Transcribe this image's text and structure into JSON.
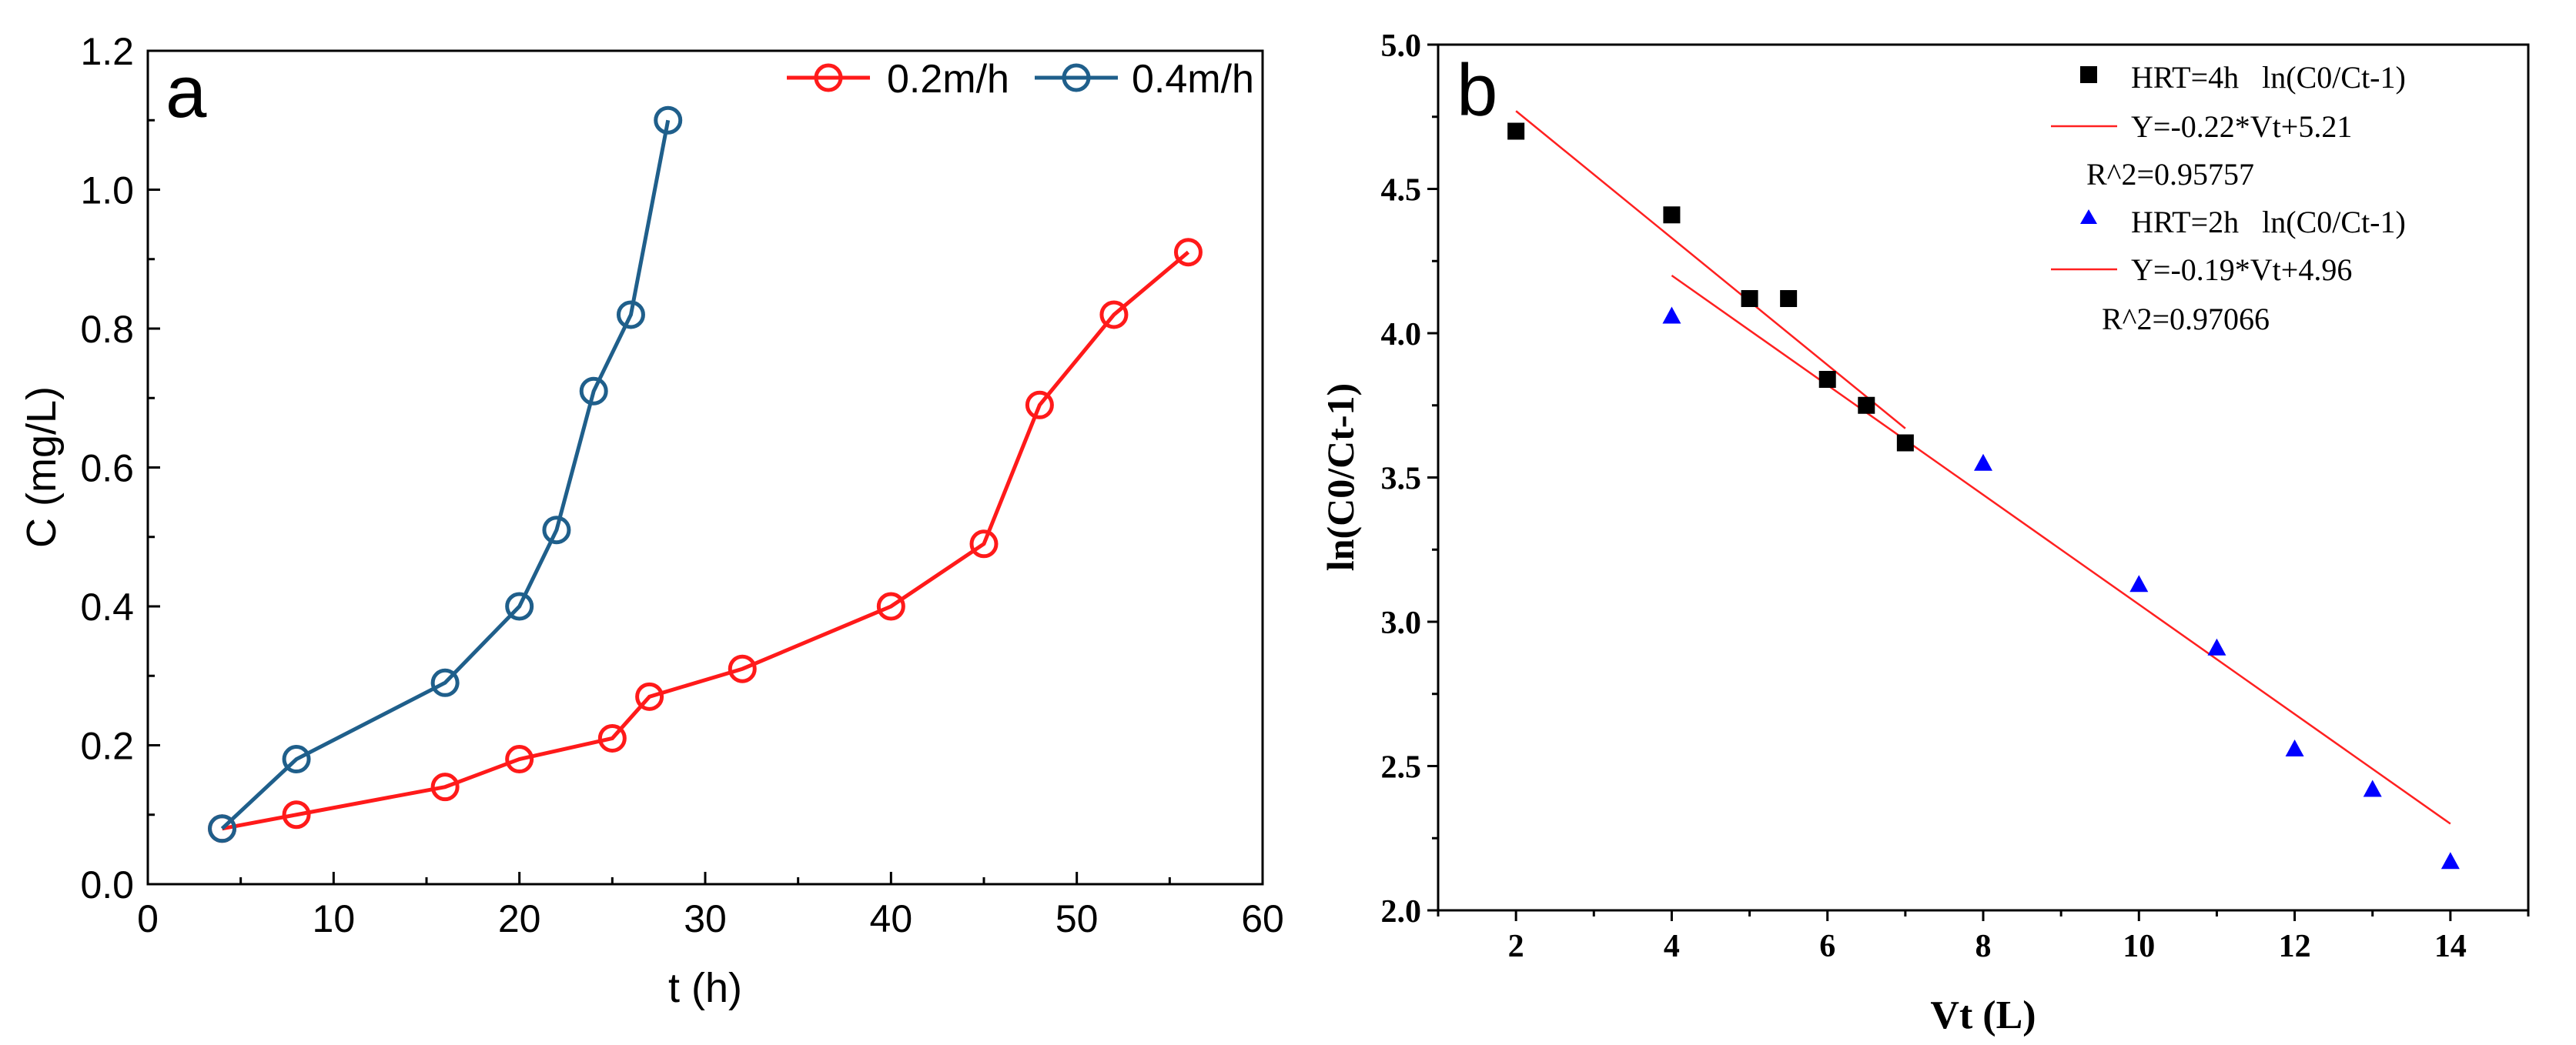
{
  "chart_data": [
    {
      "type": "line",
      "panel_label": "a",
      "xlabel": "t (h)",
      "ylabel": "C (mg/L)",
      "xlim": [
        0,
        60
      ],
      "ylim": [
        0,
        1.2
      ],
      "xticks": [
        0,
        10,
        20,
        30,
        40,
        50,
        60
      ],
      "yticks": [
        0.0,
        0.2,
        0.4,
        0.6,
        0.8,
        1.0,
        1.2
      ],
      "xtick_labels": [
        "0",
        "10",
        "20",
        "30",
        "40",
        "50",
        "60"
      ],
      "ytick_labels": [
        "0.0",
        "0.2",
        "0.4",
        "0.6",
        "0.8",
        "1.0",
        "1.2"
      ],
      "legend_position": "top-right",
      "series": [
        {
          "name": "0.2m/h",
          "color": "#ff1a1a",
          "marker": "open-circle",
          "x": [
            4,
            8,
            16,
            20,
            25,
            27,
            32,
            40,
            45,
            48,
            52,
            56
          ],
          "y": [
            0.08,
            0.1,
            0.14,
            0.18,
            0.21,
            0.27,
            0.31,
            0.4,
            0.49,
            0.69,
            0.82,
            0.91
          ]
        },
        {
          "name": "0.4m/h",
          "color": "#1f5f8b",
          "marker": "open-circle",
          "x": [
            4,
            8,
            16,
            20,
            22,
            24,
            26,
            28
          ],
          "y": [
            0.08,
            0.18,
            0.29,
            0.4,
            0.51,
            0.71,
            0.82,
            1.1
          ]
        }
      ]
    },
    {
      "type": "scatter",
      "panel_label": "b",
      "xlabel": "Vt (L)",
      "ylabel": "ln(C0/Ct-1)",
      "xlim": [
        1,
        15
      ],
      "ylim": [
        2.0,
        5.0
      ],
      "xticks": [
        2,
        4,
        6,
        8,
        10,
        12,
        14
      ],
      "yticks": [
        2.0,
        2.5,
        3.0,
        3.5,
        4.0,
        4.5,
        5.0
      ],
      "xtick_labels": [
        "2",
        "4",
        "6",
        "8",
        "10",
        "12",
        "14"
      ],
      "ytick_labels": [
        "2.0",
        "2.5",
        "3.0",
        "3.5",
        "4.0",
        "4.5",
        "5.0"
      ],
      "legend_position": "top-right",
      "series": [
        {
          "name": "HRT=4h   ln(C0/Ct-1)",
          "color": "#000000",
          "marker": "square",
          "x": [
            2,
            4,
            5,
            5.5,
            6,
            6.5,
            7
          ],
          "y": [
            4.7,
            4.41,
            4.12,
            4.12,
            3.84,
            3.75,
            3.62
          ]
        },
        {
          "name": "HRT=2h   ln(C0/Ct-1)",
          "color": "#0000ff",
          "marker": "triangle",
          "x": [
            4,
            8,
            10,
            11,
            12,
            13,
            14
          ],
          "y": [
            4.06,
            3.55,
            3.13,
            2.91,
            2.56,
            2.42,
            2.17
          ]
        }
      ],
      "fits": [
        {
          "label": "Y=-0.22*Vt+5.21",
          "r2_label": "R^2=0.95757",
          "color": "#ff2020",
          "slope": -0.22,
          "intercept": 5.21,
          "x_range": [
            2,
            7
          ]
        },
        {
          "label": "Y=-0.19*Vt+4.96",
          "r2_label": "R^2=0.97066",
          "color": "#ff2020",
          "slope": -0.19,
          "intercept": 4.96,
          "x_range": [
            4,
            14
          ]
        }
      ]
    }
  ]
}
